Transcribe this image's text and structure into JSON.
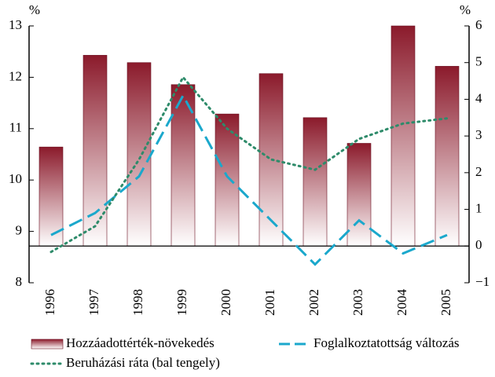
{
  "chart_data": {
    "type": "bar",
    "y_unit": "%",
    "y2_unit": "%",
    "categories": [
      "1996",
      "1997",
      "1998",
      "1999",
      "2000",
      "2001",
      "2002",
      "2003",
      "2004",
      "2005"
    ],
    "series": [
      {
        "name": "Hozzáadottérték-növekedés",
        "type": "bar",
        "axis": "y2",
        "color": "#8b1a2b",
        "values": [
          2.7,
          5.2,
          5.0,
          4.4,
          3.6,
          4.7,
          3.5,
          2.8,
          6.0,
          4.9
        ]
      },
      {
        "name": "Foglalkoztatottság változás",
        "type": "line",
        "style": "dashed",
        "axis": "y2",
        "color": "#1ba8cc",
        "values": [
          0.3,
          0.9,
          1.9,
          4.1,
          1.9,
          0.7,
          -0.5,
          0.7,
          -0.2,
          0.3
        ]
      },
      {
        "name": "Beruházási ráta (bal tengely)",
        "type": "line",
        "style": "dotted",
        "axis": "y",
        "color": "#2e8b6a",
        "values": [
          8.6,
          9.1,
          10.4,
          12.0,
          11.0,
          10.4,
          10.2,
          10.8,
          11.1,
          11.2
        ]
      }
    ],
    "ylim": [
      8,
      13
    ],
    "yticks": [
      8,
      9,
      10,
      11,
      12,
      13
    ],
    "y2lim": [
      -1,
      6
    ],
    "y2ticks": [
      {
        "value": -1,
        "label": "−1"
      },
      0,
      1,
      2,
      3,
      4,
      5,
      6
    ]
  }
}
